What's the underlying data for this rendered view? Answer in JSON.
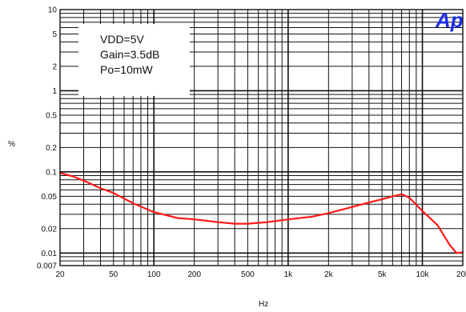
{
  "chart_data": {
    "type": "line",
    "title": "",
    "xlabel": "Hz",
    "ylabel": "%",
    "xscale": "log",
    "yscale": "log",
    "xlim": [
      20,
      20000
    ],
    "ylim": [
      0.007,
      10
    ],
    "grid": true,
    "x_ticks": [
      20,
      50,
      100,
      200,
      500,
      1000,
      2000,
      5000,
      10000,
      20000
    ],
    "x_tick_labels": [
      "20",
      "50",
      "100",
      "200",
      "500",
      "1k",
      "2k",
      "5k",
      "10k",
      "20k"
    ],
    "y_ticks": [
      0.007,
      0.01,
      0.02,
      0.05,
      0.1,
      0.2,
      0.5,
      1,
      2,
      5,
      10
    ],
    "y_tick_labels": [
      "0.007",
      "0.01",
      "0.02",
      "0.05",
      "0.1",
      "0.2",
      "0.5",
      "1",
      "2",
      "5",
      "10"
    ],
    "annotation": [
      "VDD=5V",
      "Gain=3.5dB",
      "Po=10mW"
    ],
    "logo": "Ap",
    "series": [
      {
        "color": "#ff1a1a",
        "x": [
          20,
          25,
          30,
          40,
          50,
          70,
          100,
          150,
          200,
          300,
          400,
          500,
          700,
          1000,
          1500,
          2000,
          3000,
          4000,
          5000,
          6000,
          7000,
          8000,
          10000,
          13000,
          16000,
          18000,
          20000
        ],
        "y": [
          0.097,
          0.088,
          0.078,
          0.063,
          0.055,
          0.041,
          0.032,
          0.027,
          0.026,
          0.024,
          0.023,
          0.023,
          0.024,
          0.026,
          0.028,
          0.031,
          0.037,
          0.042,
          0.046,
          0.05,
          0.053,
          0.048,
          0.033,
          0.022,
          0.0125,
          0.01,
          0.0102
        ]
      }
    ]
  }
}
